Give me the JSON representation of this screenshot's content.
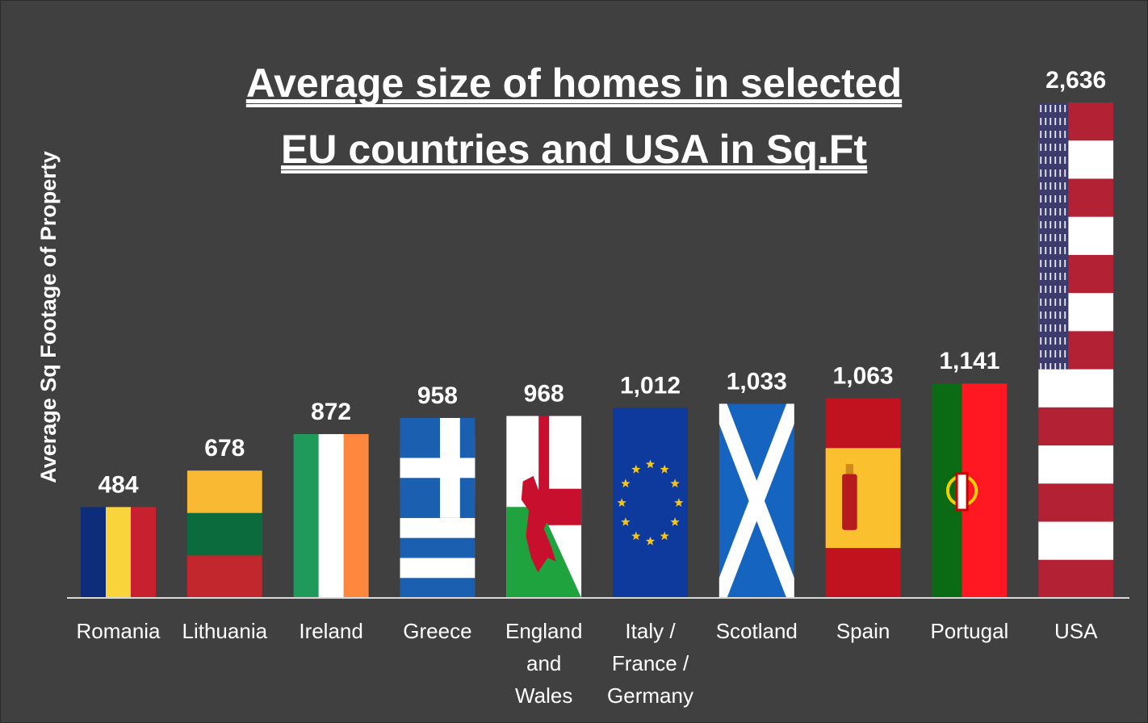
{
  "chart_data": {
    "type": "bar",
    "title_lines": [
      "Average size of homes in selected",
      "EU countries and USA in Sq.Ft"
    ],
    "xlabel": "",
    "ylabel": "Average Sq Footage of Property",
    "categories": [
      {
        "label": [
          "Romania"
        ],
        "flag": "romania"
      },
      {
        "label": [
          "Lithuania"
        ],
        "flag": "lithuania"
      },
      {
        "label": [
          "Ireland"
        ],
        "flag": "ireland"
      },
      {
        "label": [
          "Greece"
        ],
        "flag": "greece"
      },
      {
        "label": [
          "England",
          "and",
          "Wales"
        ],
        "flag": "england-wales"
      },
      {
        "label": [
          "Italy /",
          "France /",
          "Germany"
        ],
        "flag": "eu"
      },
      {
        "label": [
          "Scotland"
        ],
        "flag": "scotland"
      },
      {
        "label": [
          "Spain"
        ],
        "flag": "spain"
      },
      {
        "label": [
          "Portugal"
        ],
        "flag": "portugal"
      },
      {
        "label": [
          "USA"
        ],
        "flag": "usa"
      }
    ],
    "series": [
      {
        "values": [
          484,
          678,
          872,
          958,
          968,
          1012,
          1033,
          1063,
          1141,
          2636
        ]
      }
    ],
    "value_labels": [
      "484",
      "678",
      "872",
      "958",
      "968",
      "1,012",
      "1,033",
      "1,063",
      "1,141",
      "2,636"
    ],
    "ylim": [
      0,
      2636
    ],
    "grid": false,
    "legend": "none",
    "colors": {
      "background": "#404040",
      "text": "#ffffff",
      "axis": "#d9d9d9"
    }
  }
}
